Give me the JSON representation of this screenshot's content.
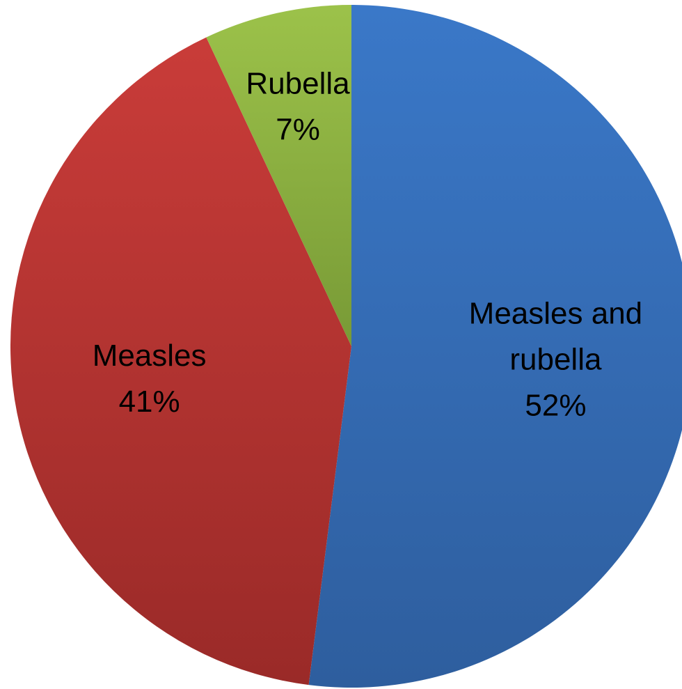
{
  "chart_data": {
    "type": "pie",
    "slices": [
      {
        "label_lines": [
          "Measles and",
          "rubella"
        ],
        "value": 52,
        "value_label": "52%",
        "color": "#3a78c8",
        "color_dark": "#2e5e9e"
      },
      {
        "label_lines": [
          "Measles"
        ],
        "value": 41,
        "value_label": "41%",
        "color": "#c93c39",
        "color_dark": "#9a2a28"
      },
      {
        "label_lines": [
          "Rubella"
        ],
        "value": 7,
        "value_label": "7%",
        "color": "#9cc24a",
        "color_dark": "#789a36"
      }
    ],
    "start_angle": "12 o'clock",
    "direction": "clockwise",
    "legend": "none",
    "title": ""
  }
}
